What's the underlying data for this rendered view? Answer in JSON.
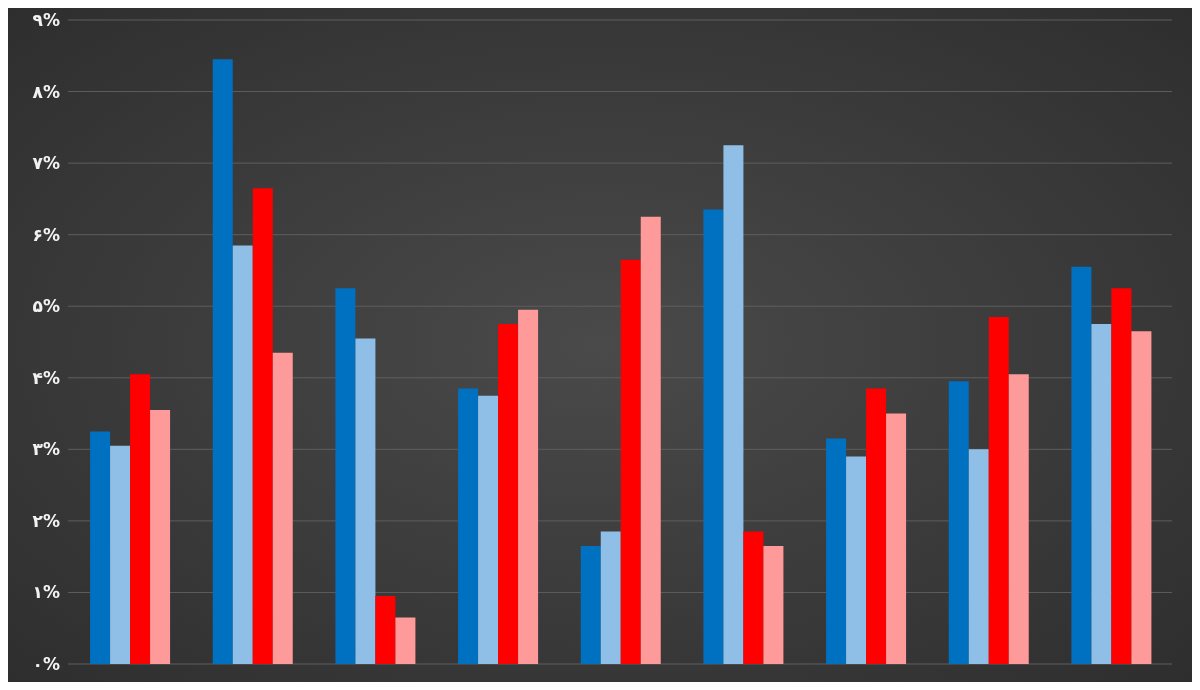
{
  "chart_data": {
    "type": "bar",
    "categories": [
      null,
      null,
      null,
      null,
      null,
      null,
      null,
      null,
      null
    ],
    "series": [
      {
        "color": "#0070c0",
        "values": [
          3.25,
          8.45,
          5.25,
          3.85,
          1.65,
          6.35,
          3.15,
          3.95,
          5.55
        ]
      },
      {
        "color": "#8fbfe6",
        "values": [
          3.05,
          5.85,
          4.55,
          3.75,
          1.85,
          7.25,
          2.9,
          3.0,
          4.75
        ]
      },
      {
        "color": "#ff0000",
        "values": [
          4.05,
          6.65,
          0.95,
          4.75,
          5.65,
          1.85,
          3.85,
          4.85,
          5.25
        ]
      },
      {
        "color": "#ff9a9a",
        "values": [
          3.55,
          4.35,
          0.65,
          4.95,
          6.25,
          1.65,
          3.5,
          4.05,
          4.65
        ]
      }
    ],
    "ylim": [
      0,
      9
    ],
    "yticks": [
      {
        "value": 0,
        "label": "۰%"
      },
      {
        "value": 1,
        "label": "۱%"
      },
      {
        "value": 2,
        "label": "۲%"
      },
      {
        "value": 3,
        "label": "۳%"
      },
      {
        "value": 4,
        "label": "۴%"
      },
      {
        "value": 5,
        "label": "۵%"
      },
      {
        "value": 6,
        "label": "۶%"
      },
      {
        "value": 7,
        "label": "۷%"
      },
      {
        "value": 8,
        "label": "۸%"
      },
      {
        "value": 9,
        "label": "۹%"
      }
    ],
    "grid": "y",
    "tick_labels": "y"
  }
}
